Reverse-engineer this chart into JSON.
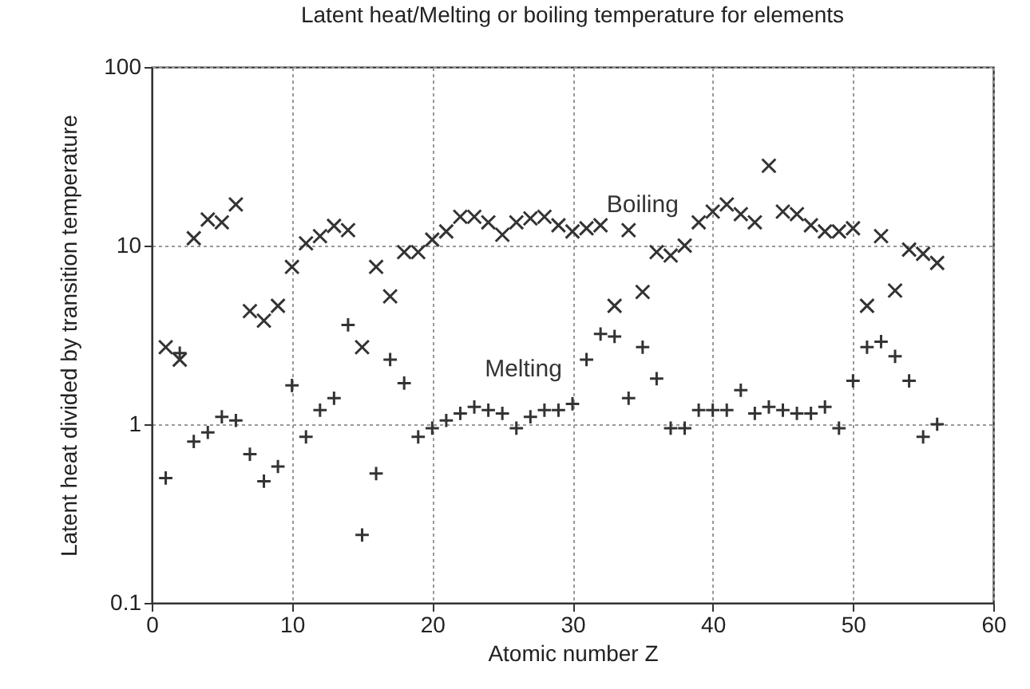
{
  "chart_data": {
    "type": "scatter",
    "title": "Latent heat/Melting or boiling temperature for elements",
    "xlabel": "Atomic number Z",
    "ylabel": "Latent heat divided by transition temperature",
    "log": "y",
    "grid": true,
    "legend": false,
    "marker": "cross",
    "xlim": [
      0,
      60
    ],
    "xticks": [
      0,
      10,
      20,
      30,
      40,
      50,
      60
    ],
    "ylim": [
      0.1,
      100
    ],
    "yticks": [
      0.1,
      1,
      10,
      100
    ],
    "series": [
      {
        "name": "Boiling",
        "color": "#333333",
        "x": [
          1,
          2,
          3,
          4,
          5,
          6,
          7,
          8,
          9,
          10,
          11,
          12,
          13,
          14,
          15,
          16,
          17,
          18,
          19,
          20,
          21,
          22,
          23,
          24,
          25,
          26,
          27,
          28,
          29,
          30,
          31,
          32,
          33,
          34,
          35,
          36,
          37,
          38,
          39,
          40,
          41,
          42,
          43,
          44,
          45,
          46,
          47,
          48,
          49,
          50,
          51,
          52,
          53,
          54,
          55,
          56
        ],
        "values": [
          2.7,
          2.3,
          11,
          14,
          13.5,
          17,
          4.3,
          3.8,
          4.6,
          7.6,
          10.3,
          11.3,
          12.9,
          12.2,
          2.7,
          7.6,
          5.2,
          9.2,
          9.2,
          10.8,
          12,
          14.5,
          14.5,
          13.5,
          11.5,
          13.5,
          14.2,
          14.5,
          13,
          12,
          12.5,
          13,
          4.6,
          12.2,
          5.5,
          9.2,
          8.8,
          10,
          13.5,
          15.5,
          17,
          15,
          13.5,
          28,
          15.5,
          15,
          13,
          12,
          12,
          12.5,
          4.6,
          11.3,
          5.6,
          9.5,
          9,
          8
        ]
      },
      {
        "name": "Melting",
        "color": "#333333",
        "x": [
          1,
          2,
          3,
          4,
          5,
          6,
          7,
          8,
          9,
          10,
          11,
          12,
          13,
          14,
          15,
          16,
          17,
          18,
          19,
          20,
          21,
          22,
          23,
          24,
          25,
          26,
          27,
          28,
          29,
          30,
          31,
          32,
          33,
          34,
          35,
          36,
          37,
          38,
          39,
          40,
          41,
          42,
          43,
          44,
          45,
          46,
          47,
          48,
          49,
          50,
          51,
          52,
          53,
          54,
          55,
          56
        ],
        "values": [
          0.5,
          2.5,
          0.8,
          0.9,
          1.1,
          1.05,
          0.68,
          0.48,
          0.58,
          1.65,
          0.85,
          1.2,
          1.4,
          3.6,
          0.24,
          0.53,
          2.3,
          1.7,
          0.85,
          0.95,
          1.05,
          1.15,
          1.25,
          1.2,
          1.15,
          0.95,
          1.1,
          1.2,
          1.2,
          1.3,
          2.3,
          3.2,
          3.1,
          1.4,
          2.7,
          1.8,
          0.95,
          0.95,
          1.2,
          1.2,
          1.2,
          1.55,
          1.15,
          1.25,
          1.2,
          1.15,
          1.15,
          1.25,
          0.95,
          1.75,
          2.7,
          2.9,
          2.4,
          1.75,
          0.85,
          1.0
        ]
      }
    ]
  }
}
